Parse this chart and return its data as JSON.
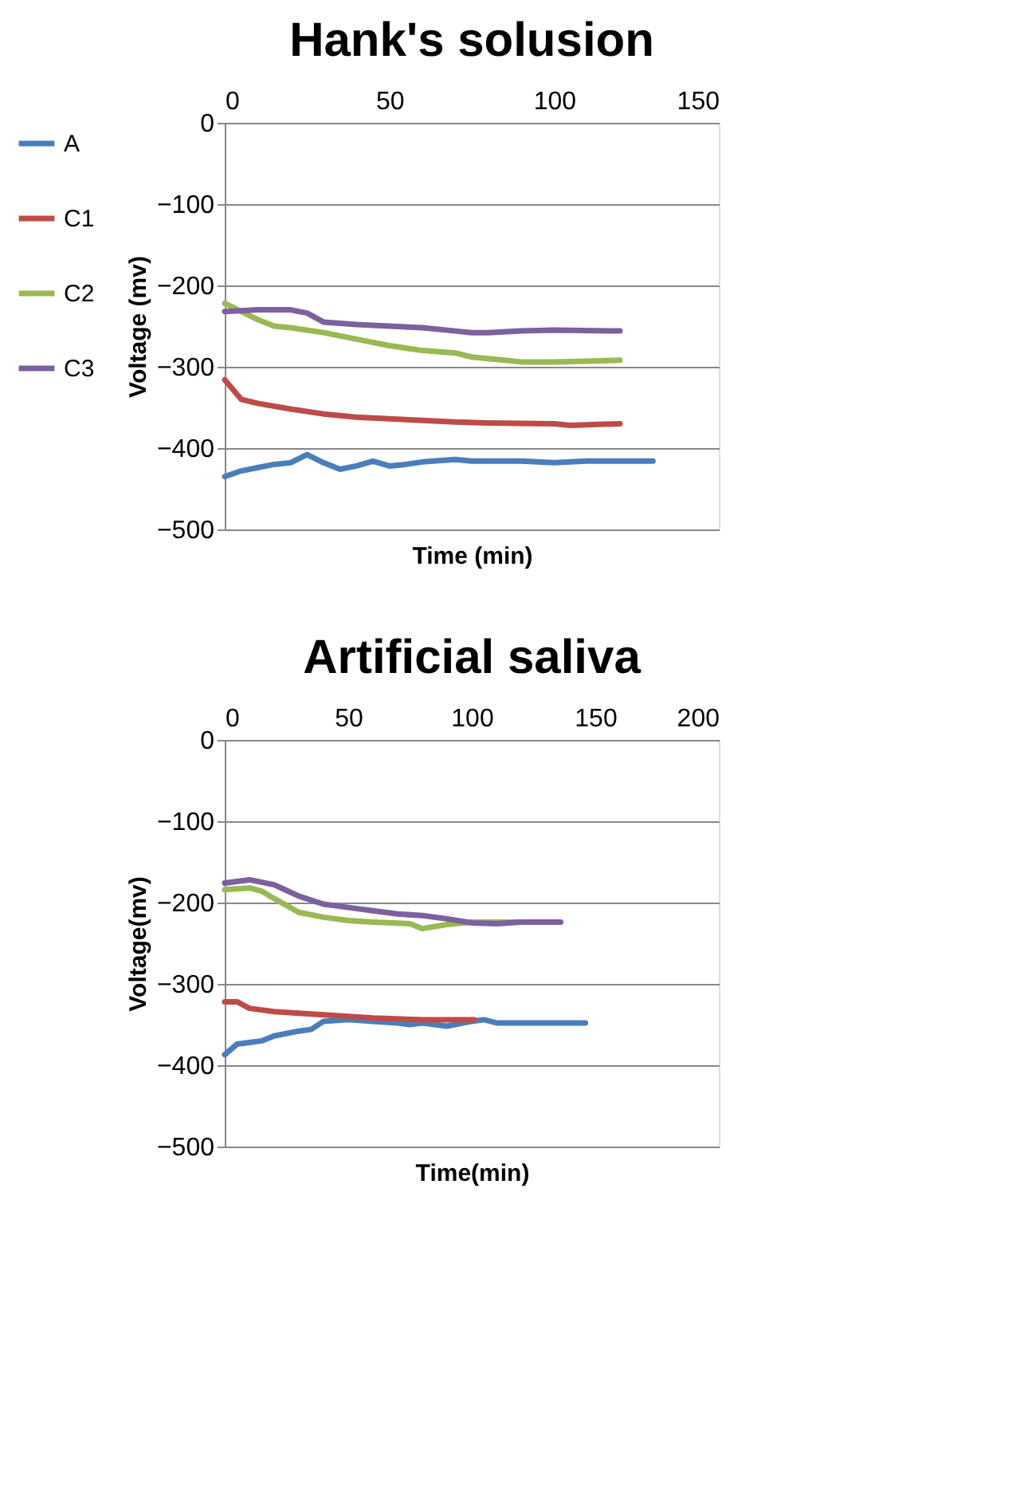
{
  "chart_data": [
    {
      "type": "line",
      "title": "Hank's solusion",
      "xlabel": "Time (min)",
      "ylabel": "Voltage (mv)",
      "xlim": [
        0,
        150
      ],
      "xticks": [
        0,
        50,
        100,
        150
      ],
      "ylim": [
        -500,
        0
      ],
      "yticks": [
        -500,
        -400,
        -300,
        -200,
        -100,
        0
      ],
      "grid": "y",
      "legend": "left",
      "marker": "none",
      "line_style": "solid",
      "series": [
        {
          "name": "A",
          "color": "#4a7ebb",
          "x": [
            0,
            5,
            10,
            15,
            20,
            25,
            30,
            35,
            40,
            45,
            50,
            55,
            60,
            70,
            75,
            90,
            100,
            110,
            130
          ],
          "values": [
            -435,
            -428,
            -424,
            -420,
            -418,
            -408,
            -418,
            -426,
            -422,
            -416,
            -422,
            -420,
            -417,
            -414,
            -416,
            -416,
            -418,
            -416,
            -416
          ]
        },
        {
          "name": "C1",
          "color": "#be4b48",
          "x": [
            0,
            5,
            10,
            20,
            30,
            40,
            50,
            60,
            70,
            80,
            100,
            105,
            120
          ],
          "values": [
            -316,
            -340,
            -345,
            -352,
            -358,
            -362,
            -364,
            -366,
            -368,
            -369,
            -370,
            -372,
            -370
          ]
        },
        {
          "name": "C2",
          "color": "#98b954",
          "x": [
            0,
            5,
            10,
            15,
            20,
            30,
            40,
            50,
            60,
            70,
            75,
            85,
            90,
            100,
            120
          ],
          "values": [
            -222,
            -232,
            -242,
            -250,
            -252,
            -258,
            -266,
            -274,
            -280,
            -283,
            -288,
            -292,
            -294,
            -294,
            -292
          ]
        },
        {
          "name": "C3",
          "color": "#7d60a0",
          "x": [
            0,
            10,
            20,
            25,
            30,
            40,
            50,
            60,
            70,
            75,
            80,
            90,
            100,
            120
          ],
          "values": [
            -232,
            -230,
            -230,
            -234,
            -245,
            -248,
            -250,
            -252,
            -256,
            -258,
            -258,
            -256,
            -255,
            -256
          ]
        }
      ]
    },
    {
      "type": "line",
      "title": "Artificial saliva",
      "xlabel": "Time(min)",
      "ylabel": "Voltage(mv)",
      "xlim": [
        0,
        200
      ],
      "xticks": [
        0,
        50,
        100,
        150,
        200
      ],
      "ylim": [
        -500,
        0
      ],
      "yticks": [
        -500,
        -400,
        -300,
        -200,
        -100,
        0
      ],
      "grid": "y",
      "legend": "left",
      "marker": "none",
      "line_style": "solid",
      "series": [
        {
          "name": "A",
          "color": "#4a7ebb",
          "x": [
            0,
            5,
            10,
            15,
            20,
            30,
            35,
            40,
            50,
            60,
            70,
            75,
            80,
            90,
            100,
            105,
            110,
            120,
            146
          ],
          "values": [
            -387,
            -374,
            -372,
            -370,
            -364,
            -358,
            -356,
            -346,
            -344,
            -346,
            -348,
            -350,
            -348,
            -352,
            -346,
            -344,
            -348,
            -348,
            -348
          ]
        },
        {
          "name": "C1",
          "color": "#be4b48",
          "x": [
            0,
            5,
            10,
            20,
            40,
            60,
            80,
            101
          ],
          "values": [
            -322,
            -322,
            -330,
            -334,
            -338,
            -342,
            -344,
            -344
          ]
        },
        {
          "name": "C2",
          "color": "#98b954",
          "x": [
            0,
            10,
            15,
            20,
            30,
            40,
            50,
            60,
            75,
            80,
            90,
            100,
            110,
            121
          ],
          "values": [
            -184,
            -182,
            -186,
            -195,
            -212,
            -218,
            -222,
            -224,
            -226,
            -232,
            -227,
            -224,
            -224,
            -224
          ]
        },
        {
          "name": "C3",
          "color": "#7d60a0",
          "x": [
            0,
            10,
            20,
            25,
            30,
            40,
            50,
            60,
            70,
            80,
            90,
            100,
            110,
            120,
            136
          ],
          "values": [
            -176,
            -172,
            -178,
            -185,
            -192,
            -202,
            -206,
            -210,
            -214,
            -216,
            -220,
            -225,
            -226,
            -224,
            -224
          ]
        }
      ]
    }
  ]
}
